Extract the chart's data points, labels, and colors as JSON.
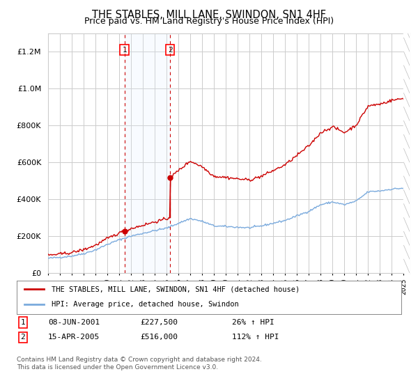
{
  "title": "THE STABLES, MILL LANE, SWINDON, SN1 4HF",
  "subtitle": "Price paid vs. HM Land Registry's House Price Index (HPI)",
  "legend_label_red": "THE STABLES, MILL LANE, SWINDON, SN1 4HF (detached house)",
  "legend_label_blue": "HPI: Average price, detached house, Swindon",
  "sale1_label": "1",
  "sale1_date": "08-JUN-2001",
  "sale1_price": "£227,500",
  "sale1_hpi": "26% ↑ HPI",
  "sale1_year": 2001.44,
  "sale1_value": 227500,
  "sale2_label": "2",
  "sale2_date": "15-APR-2005",
  "sale2_price": "£516,000",
  "sale2_hpi": "112% ↑ HPI",
  "sale2_year": 2005.29,
  "sale2_value": 516000,
  "footer": "Contains HM Land Registry data © Crown copyright and database right 2024.\nThis data is licensed under the Open Government Licence v3.0.",
  "ylim": [
    0,
    1300000
  ],
  "xlim": [
    1995,
    2025.5
  ],
  "background_color": "#ffffff",
  "plot_bg_color": "#ffffff",
  "grid_color": "#cccccc",
  "red_color": "#cc0000",
  "blue_color": "#7aaadd",
  "shade_color": "#ddeeff",
  "title_fontsize": 10.5,
  "subtitle_fontsize": 9
}
